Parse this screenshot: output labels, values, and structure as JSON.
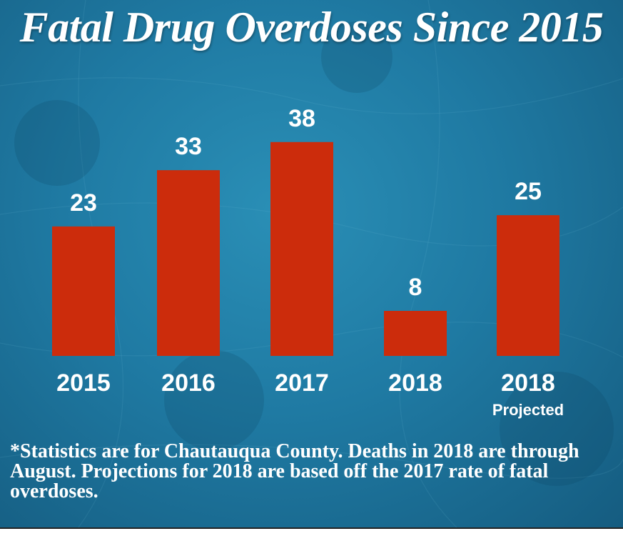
{
  "chart_data": {
    "type": "bar",
    "title": "Fatal Drug Overdoses Since 2015",
    "categories": [
      "2015",
      "2016",
      "2017",
      "2018",
      "2018"
    ],
    "category_sublabels": [
      "",
      "",
      "",
      "",
      "Projected"
    ],
    "values": [
      23,
      33,
      38,
      8,
      25
    ],
    "ylim": [
      0,
      40
    ],
    "xlabel": "",
    "ylabel": "",
    "grid": false,
    "bar_color": "#cc2c0c"
  },
  "footnote": "*Statistics are for Chautauqua County. Deaths in 2018 are through August. Projections for 2018 are based off the 2017 rate of fatal overdoses.",
  "colors": {
    "background": "#1f7aa3",
    "text": "#ffffff",
    "bar": "#cc2c0c"
  }
}
